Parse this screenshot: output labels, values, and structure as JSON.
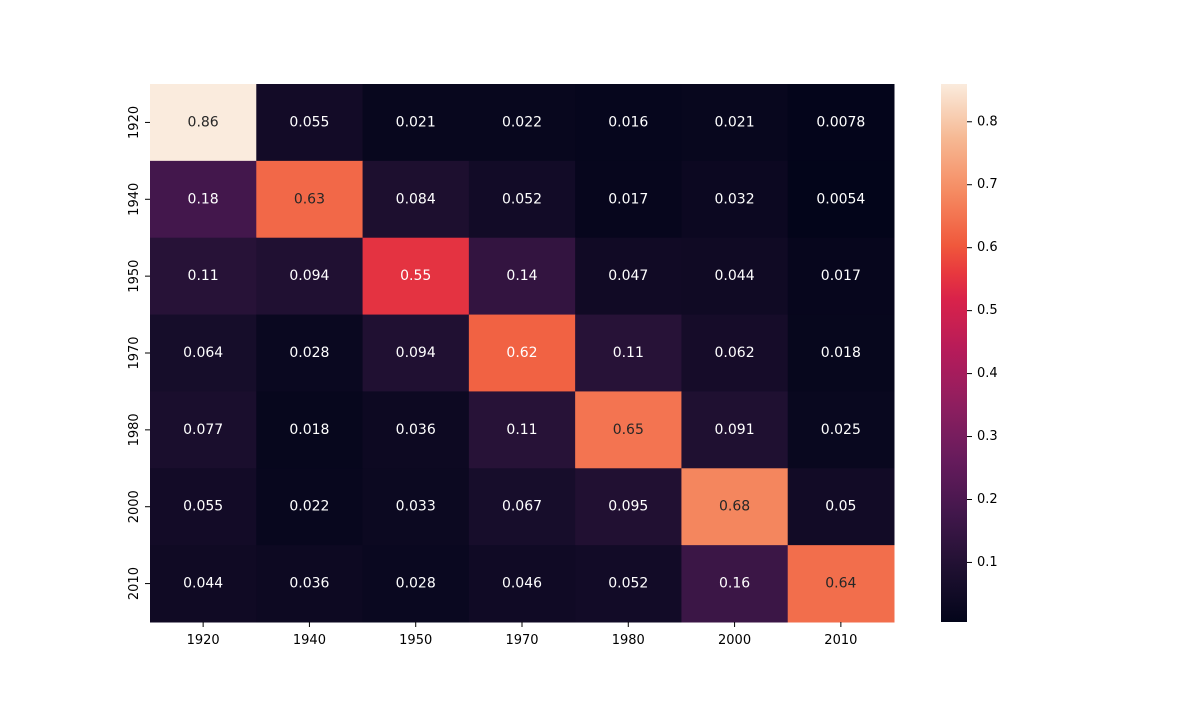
{
  "chart_data": {
    "type": "heatmap",
    "title": "",
    "xlabel": "",
    "ylabel": "",
    "x_categories": [
      "1920",
      "1940",
      "1950",
      "1970",
      "1980",
      "2000",
      "2010"
    ],
    "y_categories": [
      "1920",
      "1940",
      "1950",
      "1970",
      "1980",
      "2000",
      "2010"
    ],
    "values": [
      [
        0.86,
        0.055,
        0.021,
        0.022,
        0.016,
        0.021,
        0.0078
      ],
      [
        0.18,
        0.63,
        0.084,
        0.052,
        0.017,
        0.032,
        0.0054
      ],
      [
        0.11,
        0.094,
        0.55,
        0.14,
        0.047,
        0.044,
        0.017
      ],
      [
        0.064,
        0.028,
        0.094,
        0.62,
        0.11,
        0.062,
        0.018
      ],
      [
        0.077,
        0.018,
        0.036,
        0.11,
        0.65,
        0.091,
        0.025
      ],
      [
        0.055,
        0.022,
        0.033,
        0.067,
        0.095,
        0.68,
        0.05
      ],
      [
        0.044,
        0.036,
        0.028,
        0.046,
        0.052,
        0.16,
        0.64
      ]
    ],
    "labels": [
      [
        "0.86",
        "0.055",
        "0.021",
        "0.022",
        "0.016",
        "0.021",
        "0.0078"
      ],
      [
        "0.18",
        "0.63",
        "0.084",
        "0.052",
        "0.017",
        "0.032",
        "0.0054"
      ],
      [
        "0.11",
        "0.094",
        "0.55",
        "0.14",
        "0.047",
        "0.044",
        "0.017"
      ],
      [
        "0.064",
        "0.028",
        "0.094",
        "0.62",
        "0.11",
        "0.062",
        "0.018"
      ],
      [
        "0.077",
        "0.018",
        "0.036",
        "0.11",
        "0.65",
        "0.091",
        "0.025"
      ],
      [
        "0.055",
        "0.022",
        "0.033",
        "0.067",
        "0.095",
        "0.68",
        "0.05"
      ],
      [
        "0.044",
        "0.036",
        "0.028",
        "0.046",
        "0.052",
        "0.16",
        "0.64"
      ]
    ],
    "colormap": "rocket",
    "vmin": 0.0054,
    "vmax": 0.86,
    "colorbar": {
      "ticks": [
        0.1,
        0.2,
        0.3,
        0.4,
        0.5,
        0.6,
        0.7,
        0.8
      ],
      "tick_labels": [
        "0.1",
        "0.2",
        "0.3",
        "0.4",
        "0.5",
        "0.6",
        "0.7",
        "0.8"
      ],
      "placement": "right"
    },
    "grid": false
  }
}
